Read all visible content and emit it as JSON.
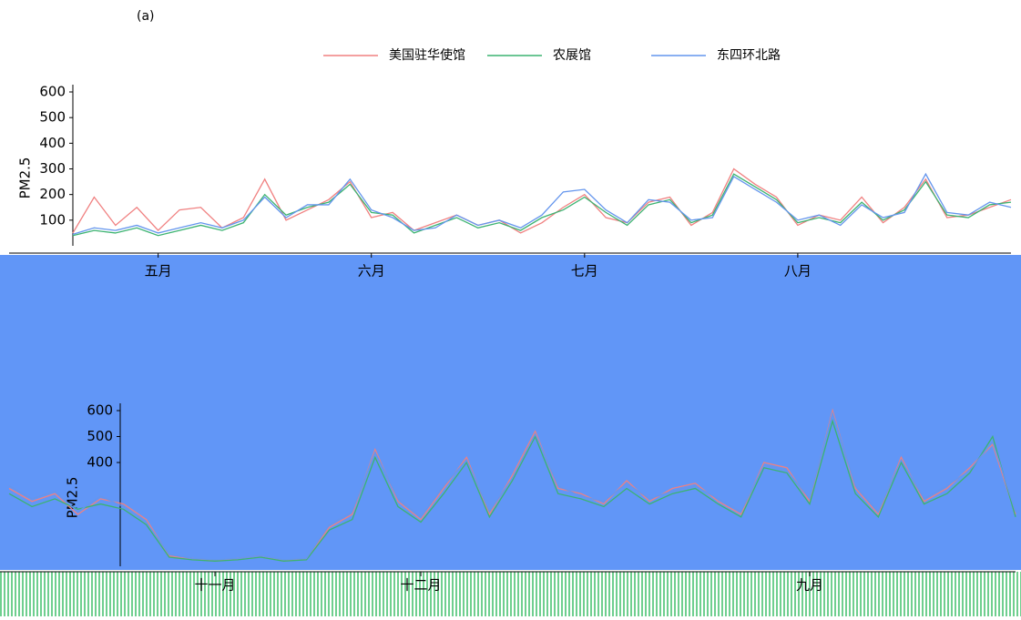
{
  "chart_data": [
    {
      "type": "line",
      "title": "(a)",
      "y_label": "PM2.5",
      "categories": [
        null,
        null,
        null,
        null,
        "五月",
        null,
        null,
        null,
        null,
        null,
        null,
        null,
        null,
        null,
        "六月",
        null,
        null,
        null,
        null,
        null,
        null,
        null,
        null,
        null,
        "七月",
        null,
        null,
        null,
        null,
        null,
        null,
        null,
        null,
        null,
        "八月",
        null,
        null,
        null,
        null,
        null,
        null,
        null,
        null,
        null,
        null
      ],
      "series": [
        {
          "name": "美国驻华使馆",
          "color": "#f08080",
          "values": [
            50,
            190,
            80,
            150,
            60,
            140,
            150,
            70,
            110,
            260,
            100,
            140,
            180,
            250,
            110,
            130,
            60,
            90,
            120,
            80,
            100,
            50,
            90,
            150,
            200,
            110,
            90,
            170,
            190,
            80,
            130,
            300,
            240,
            190,
            80,
            120,
            100,
            190,
            90,
            150,
            260,
            110,
            120,
            150,
            180
          ]
        },
        {
          "name": "农展馆",
          "color": "#3cb371",
          "values": [
            40,
            60,
            50,
            70,
            40,
            60,
            80,
            60,
            90,
            200,
            120,
            150,
            170,
            240,
            130,
            120,
            50,
            80,
            110,
            70,
            90,
            60,
            110,
            140,
            190,
            130,
            80,
            160,
            180,
            90,
            120,
            280,
            230,
            180,
            90,
            110,
            90,
            170,
            100,
            140,
            250,
            120,
            110,
            160,
            170
          ]
        },
        {
          "name": "东四环北路",
          "color": "#6495ed",
          "values": [
            45,
            70,
            60,
            80,
            50,
            70,
            90,
            70,
            100,
            190,
            110,
            160,
            160,
            260,
            140,
            110,
            60,
            70,
            120,
            80,
            100,
            70,
            120,
            210,
            220,
            140,
            90,
            180,
            170,
            100,
            110,
            270,
            220,
            170,
            100,
            120,
            80,
            160,
            110,
            130,
            280,
            130,
            120,
            170,
            150
          ]
        }
      ],
      "ylim": [
        0,
        600
      ],
      "yticks": [
        100,
        200,
        300,
        400,
        500,
        600
      ]
    },
    {
      "type": "line",
      "y_label": "PM2.5",
      "categories": [
        null,
        null,
        null,
        null,
        null,
        null,
        null,
        null,
        null,
        "十一月",
        null,
        null,
        null,
        null,
        null,
        null,
        null,
        null,
        "十二月",
        null,
        null,
        null,
        null,
        null,
        null,
        null,
        null,
        null,
        null,
        null,
        null,
        null,
        null,
        null,
        null,
        "九月",
        null,
        null,
        null,
        null,
        null,
        null,
        null,
        null,
        null
      ],
      "series": [
        {
          "name": "美国驻华使馆",
          "color": "#f08080",
          "values": [
            300,
            250,
            280,
            200,
            260,
            240,
            180,
            40,
            30,
            20,
            30,
            40,
            20,
            30,
            150,
            200,
            450,
            250,
            180,
            300,
            420,
            200,
            350,
            520,
            300,
            280,
            240,
            330,
            250,
            300,
            320,
            250,
            200,
            400,
            380,
            250,
            600,
            300,
            200,
            420,
            250,
            300,
            380,
            470,
            200
          ]
        },
        {
          "name": "农展馆",
          "color": "#3cb371",
          "values": [
            280,
            230,
            260,
            220,
            240,
            220,
            160,
            35,
            25,
            20,
            25,
            35,
            20,
            25,
            140,
            180,
            420,
            230,
            170,
            280,
            400,
            190,
            330,
            500,
            280,
            260,
            230,
            300,
            240,
            280,
            300,
            240,
            190,
            380,
            360,
            240,
            560,
            280,
            190,
            400,
            240,
            280,
            360,
            500,
            190
          ]
        },
        {
          "name": "东四环北路",
          "color": "#6495ed",
          "values": [
            310,
            260,
            290,
            210,
            270,
            230,
            170,
            45,
            30,
            25,
            30,
            40,
            25,
            30,
            160,
            210,
            440,
            260,
            190,
            310,
            410,
            210,
            340,
            510,
            310,
            270,
            250,
            320,
            260,
            290,
            310,
            260,
            210,
            390,
            370,
            260,
            590,
            310,
            210,
            410,
            260,
            310,
            370,
            480,
            210
          ]
        }
      ],
      "ylim": [
        0,
        600
      ],
      "yticks": [
        400,
        500,
        600
      ]
    }
  ]
}
